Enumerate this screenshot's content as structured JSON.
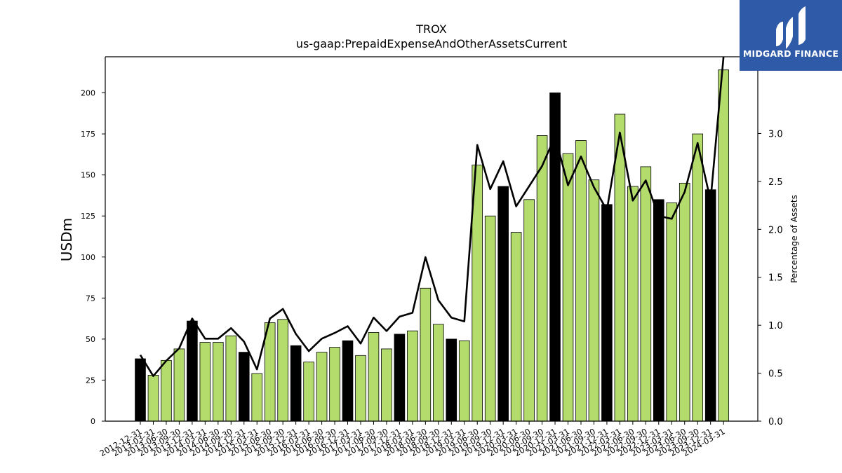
{
  "chart_data": {
    "type": "bar",
    "title": "TROX",
    "subtitle": "us-gaap:PrepaidExpenseAndOtherAssetsCurrent",
    "ylabel": "USDm",
    "y2label": "Percentage of Assets",
    "ylim": [
      0,
      222
    ],
    "y2lim": [
      0,
      3.8
    ],
    "yticks": [
      0,
      25,
      50,
      75,
      100,
      125,
      150,
      175,
      200
    ],
    "y2ticks": [
      "0.0",
      "0.5",
      "1.0",
      "1.5",
      "2.0",
      "2.5",
      "3.0"
    ],
    "legend": "none",
    "grid": false,
    "categories": [
      "2012-12-31",
      "2013-03-31",
      "2013-06-30",
      "2013-09-30",
      "2013-12-31",
      "2014-03-31",
      "2014-06-30",
      "2014-09-30",
      "2014-12-31",
      "2015-03-31",
      "2015-06-30",
      "2015-09-30",
      "2015-12-31",
      "2016-03-31",
      "2016-06-30",
      "2016-09-30",
      "2016-12-31",
      "2017-03-31",
      "2017-06-30",
      "2017-09-30",
      "2017-12-31",
      "2018-03-31",
      "2018-06-30",
      "2018-09-30",
      "2018-12-31",
      "2019-03-31",
      "2019-06-30",
      "2019-09-30",
      "2019-12-31",
      "2020-03-31",
      "2020-06-30",
      "2020-09-30",
      "2020-12-31",
      "2021-03-31",
      "2021-06-30",
      "2021-09-30",
      "2021-12-31",
      "2022-03-31",
      "2022-06-30",
      "2022-09-30",
      "2022-12-31",
      "2023-03-31",
      "2023-06-30",
      "2023-09-30",
      "2023-12-31",
      "2024-03-31"
    ],
    "series": [
      {
        "kind": "bar",
        "values": [
          38,
          28,
          37,
          44,
          61,
          48,
          48,
          52,
          42,
          29,
          60,
          62,
          46,
          36,
          42,
          45,
          49,
          40,
          54,
          44,
          53,
          55,
          81,
          59,
          50,
          49,
          156,
          125,
          143,
          115,
          135,
          174,
          200,
          163,
          171,
          147,
          132,
          187,
          143,
          155,
          135,
          133,
          145,
          175,
          141,
          214
        ],
        "year_end": [
          true,
          false,
          false,
          false,
          true,
          false,
          false,
          false,
          true,
          false,
          false,
          false,
          true,
          false,
          false,
          false,
          true,
          false,
          false,
          false,
          true,
          false,
          false,
          false,
          true,
          false,
          false,
          false,
          true,
          false,
          false,
          false,
          true,
          false,
          false,
          false,
          true,
          false,
          false,
          false,
          true,
          false,
          false,
          false,
          true,
          false
        ]
      },
      {
        "kind": "line",
        "axis": "right",
        "values": [
          0.69,
          0.47,
          0.63,
          0.76,
          1.07,
          0.86,
          0.86,
          0.97,
          0.83,
          0.54,
          1.07,
          1.17,
          0.91,
          0.73,
          0.86,
          0.92,
          0.99,
          0.81,
          1.08,
          0.94,
          1.09,
          1.13,
          1.71,
          1.26,
          1.08,
          1.04,
          2.88,
          2.42,
          2.71,
          2.24,
          2.45,
          2.66,
          2.97,
          2.46,
          2.76,
          2.44,
          2.2,
          3.01,
          2.3,
          2.51,
          2.14,
          2.11,
          2.39,
          2.9,
          2.3,
          3.8
        ]
      }
    ],
    "colors": {
      "bar": "#b3dc6c",
      "bar_year_end": "#000000",
      "line": "#000000"
    }
  },
  "logo": {
    "text": "MIDGARD FINANCE",
    "background": "#2f5aa8"
  }
}
